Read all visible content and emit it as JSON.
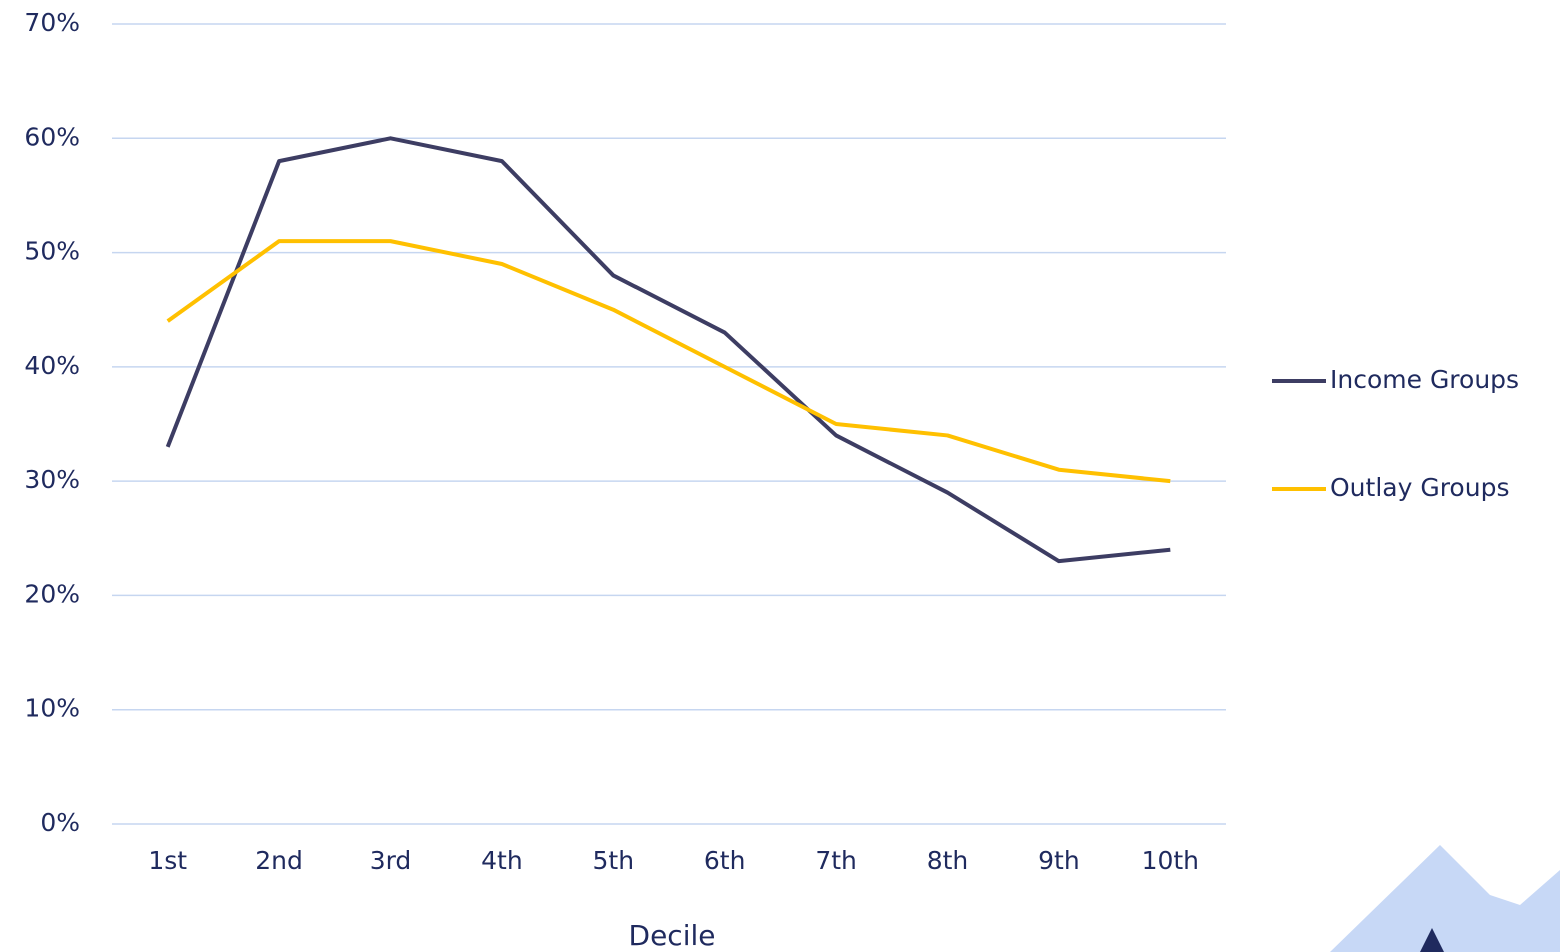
{
  "chart_data": {
    "type": "line",
    "x_label": "Decile",
    "categories": [
      "1st",
      "2nd",
      "3rd",
      "4th",
      "5th",
      "6th",
      "7th",
      "8th",
      "9th",
      "10th"
    ],
    "series": [
      {
        "name": "Income Groups",
        "color": "#3d3d63",
        "values": [
          33,
          58,
          60,
          58,
          48,
          43,
          34,
          29,
          23,
          24
        ]
      },
      {
        "name": "Outlay Groups",
        "color": "#ffc000",
        "values": [
          44,
          51,
          51,
          49,
          45,
          40,
          35,
          34,
          31,
          30
        ]
      }
    ],
    "ylim": [
      0,
      70
    ],
    "yticks": [
      {
        "value": 0,
        "label": "0%"
      },
      {
        "value": 10,
        "label": "10%"
      },
      {
        "value": 20,
        "label": "20%"
      },
      {
        "value": 30,
        "label": "30%"
      },
      {
        "value": 40,
        "label": "40%"
      },
      {
        "value": 50,
        "label": "50%"
      },
      {
        "value": 60,
        "label": "60%"
      },
      {
        "value": 70,
        "label": "70%"
      }
    ],
    "grid": true,
    "legend": "right"
  }
}
